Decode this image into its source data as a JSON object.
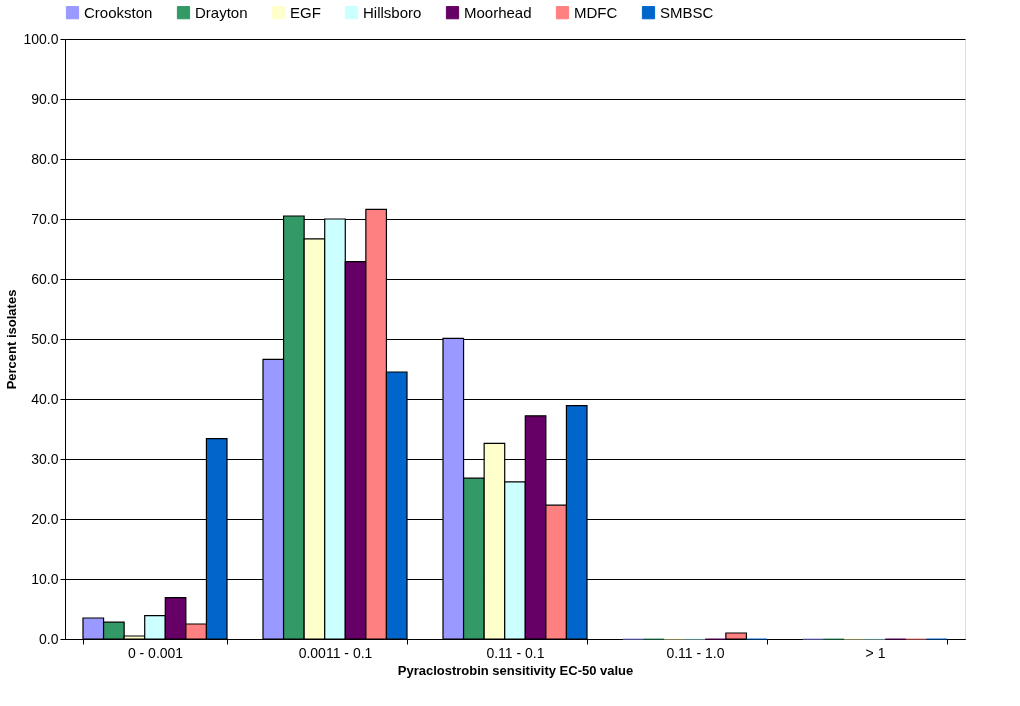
{
  "chart_data": {
    "type": "bar",
    "xlabel": "Pyraclostrobin sensitivity  EC-50 value",
    "ylabel": "Percent isolates",
    "categories": [
      "0 - 0.001",
      "0.0011 - 0.1",
      "0.11 - 0.1",
      "0.11 - 1.0",
      "> 1"
    ],
    "series": [
      {
        "name": "Crookston",
        "color": "#9999ff",
        "values": [
          3.5,
          46.6,
          50.1,
          0,
          0
        ]
      },
      {
        "name": "Drayton",
        "color": "#339966",
        "values": [
          2.8,
          70.5,
          26.8,
          0,
          0
        ]
      },
      {
        "name": "EGF",
        "color": "#ffffcc",
        "values": [
          0.5,
          66.7,
          32.6,
          0,
          0
        ]
      },
      {
        "name": "Hillsboro",
        "color": "#ccffff",
        "values": [
          3.9,
          70.0,
          26.2,
          0,
          0
        ]
      },
      {
        "name": "Moorhead",
        "color": "#660066",
        "values": [
          6.9,
          62.9,
          37.2,
          0,
          0
        ]
      },
      {
        "name": "MDFC",
        "color": "#ff8080",
        "values": [
          2.5,
          71.6,
          22.3,
          1.0,
          0
        ]
      },
      {
        "name": "SMBSC",
        "color": "#0066cc",
        "values": [
          33.4,
          44.5,
          38.9,
          0,
          0
        ]
      }
    ],
    "ylim": [
      0,
      100
    ],
    "yticks": [
      {
        "value": 0,
        "label": "0.0"
      },
      {
        "value": 10,
        "label": "10.0"
      },
      {
        "value": 20,
        "label": "20.0"
      },
      {
        "value": 30,
        "label": "30.0"
      },
      {
        "value": 40,
        "label": "40.0"
      },
      {
        "value": 50,
        "label": "50.0"
      },
      {
        "value": 60,
        "label": "60.0"
      },
      {
        "value": 70,
        "label": "70.0"
      },
      {
        "value": 80,
        "label": "80.0"
      },
      {
        "value": 90,
        "label": "90.0"
      },
      {
        "value": 100,
        "label": "100.0"
      }
    ],
    "grid": "y",
    "legend": "top"
  }
}
